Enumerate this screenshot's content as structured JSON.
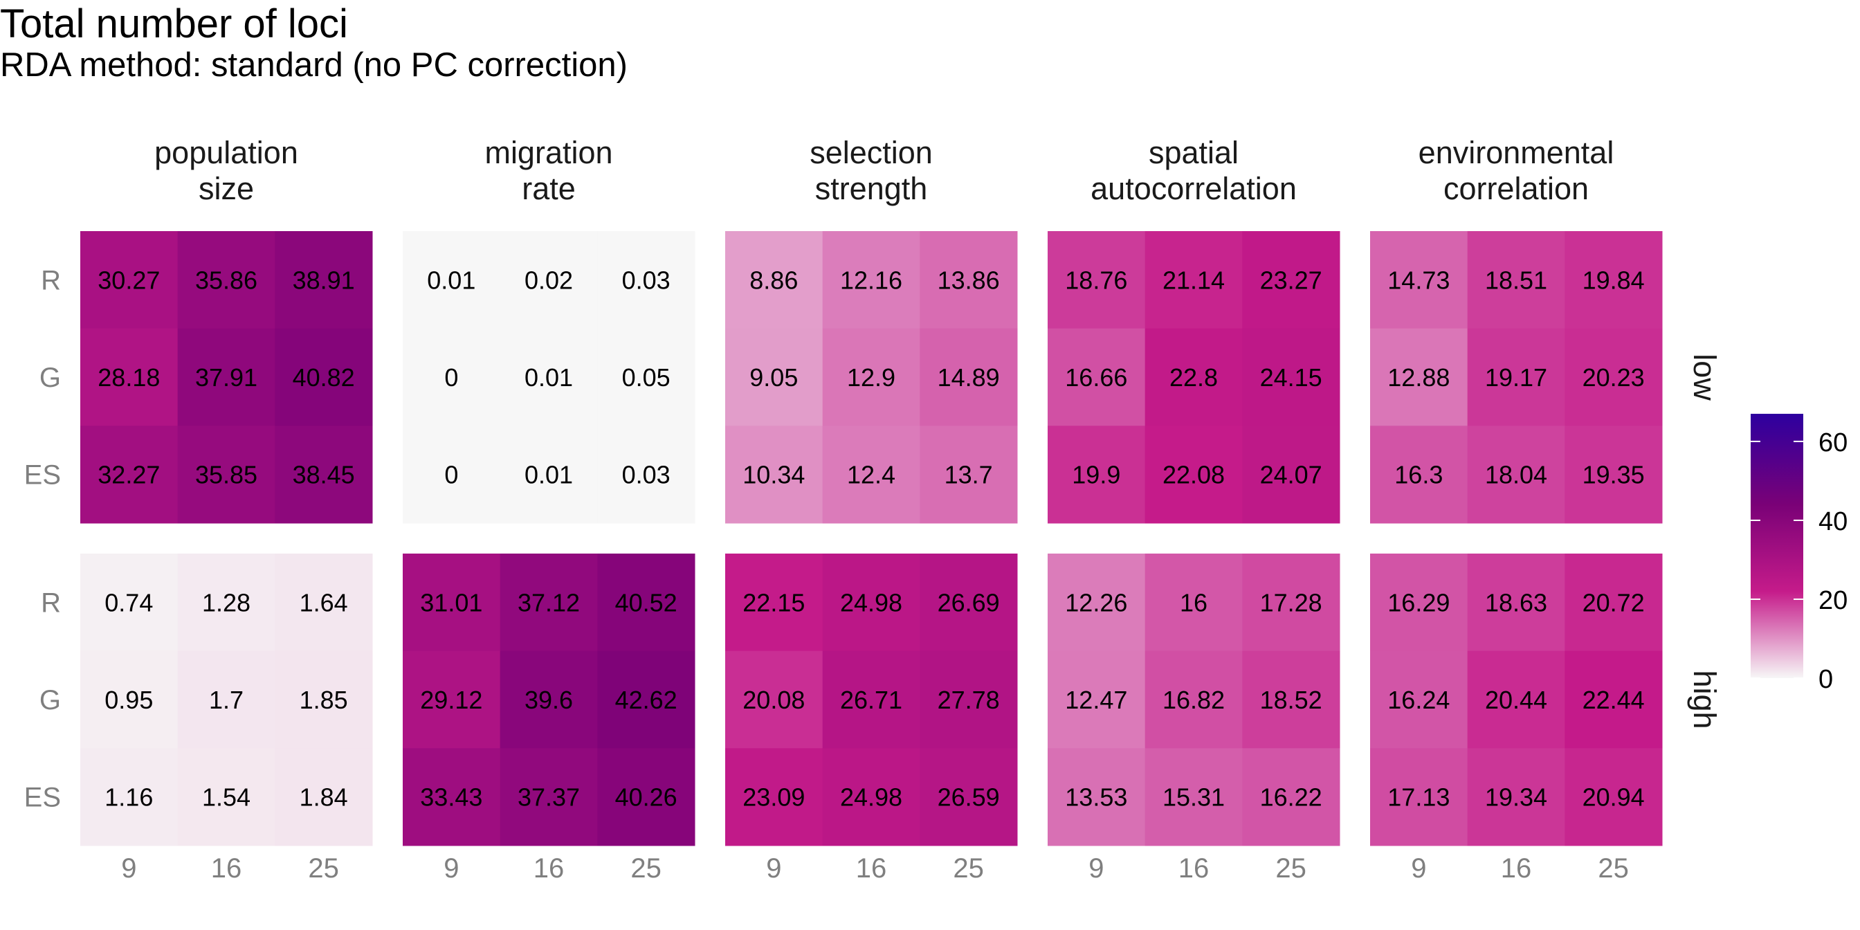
{
  "chart_data": {
    "type": "heatmap",
    "title": "Total number of loci",
    "subtitle": "RDA method: standard (no PC correction)",
    "x_categories": [
      "9",
      "16",
      "25"
    ],
    "y_categories": [
      "R",
      "G",
      "ES"
    ],
    "facet_columns": [
      {
        "label": [
          "population",
          "size"
        ]
      },
      {
        "label": [
          "migration",
          "rate"
        ]
      },
      {
        "label": [
          "selection",
          "strength"
        ]
      },
      {
        "label": [
          "spatial",
          "autocorrelation"
        ]
      },
      {
        "label": [
          "environmental",
          "correlation"
        ]
      }
    ],
    "facet_rows": [
      "low",
      "high"
    ],
    "values": {
      "low": [
        [
          [
            30.27,
            35.86,
            38.91
          ],
          [
            28.18,
            37.91,
            40.82
          ],
          [
            32.27,
            35.85,
            38.45
          ]
        ],
        [
          [
            0.01,
            0.02,
            0.03
          ],
          [
            0,
            0.01,
            0.05
          ],
          [
            0,
            0.01,
            0.03
          ]
        ],
        [
          [
            8.86,
            12.16,
            13.86
          ],
          [
            9.05,
            12.9,
            14.89
          ],
          [
            10.34,
            12.4,
            13.7
          ]
        ],
        [
          [
            18.76,
            21.14,
            23.27
          ],
          [
            16.66,
            22.8,
            24.15
          ],
          [
            19.9,
            22.08,
            24.07
          ]
        ],
        [
          [
            14.73,
            18.51,
            19.84
          ],
          [
            12.88,
            19.17,
            20.23
          ],
          [
            16.3,
            18.04,
            19.35
          ]
        ]
      ],
      "high": [
        [
          [
            0.74,
            1.28,
            1.64
          ],
          [
            0.95,
            1.7,
            1.85
          ],
          [
            1.16,
            1.54,
            1.84
          ]
        ],
        [
          [
            31.01,
            37.12,
            40.52
          ],
          [
            29.12,
            39.6,
            42.62
          ],
          [
            33.43,
            37.37,
            40.26
          ]
        ],
        [
          [
            22.15,
            24.98,
            26.69
          ],
          [
            20.08,
            26.71,
            27.78
          ],
          [
            23.09,
            24.98,
            26.59
          ]
        ],
        [
          [
            12.26,
            16,
            17.28
          ],
          [
            12.47,
            16.82,
            18.52
          ],
          [
            13.53,
            15.31,
            16.22
          ]
        ],
        [
          [
            16.29,
            18.63,
            20.72
          ],
          [
            16.24,
            20.44,
            22.44
          ],
          [
            17.13,
            19.34,
            20.94
          ]
        ]
      ]
    },
    "legend": {
      "position": "right",
      "limits": [
        0,
        67
      ],
      "breaks": [
        0,
        20,
        40,
        60
      ],
      "colors": [
        "#f7f7f7",
        "#c51b8a",
        "#7a0177",
        "#2d009f"
      ]
    },
    "grid": false
  }
}
